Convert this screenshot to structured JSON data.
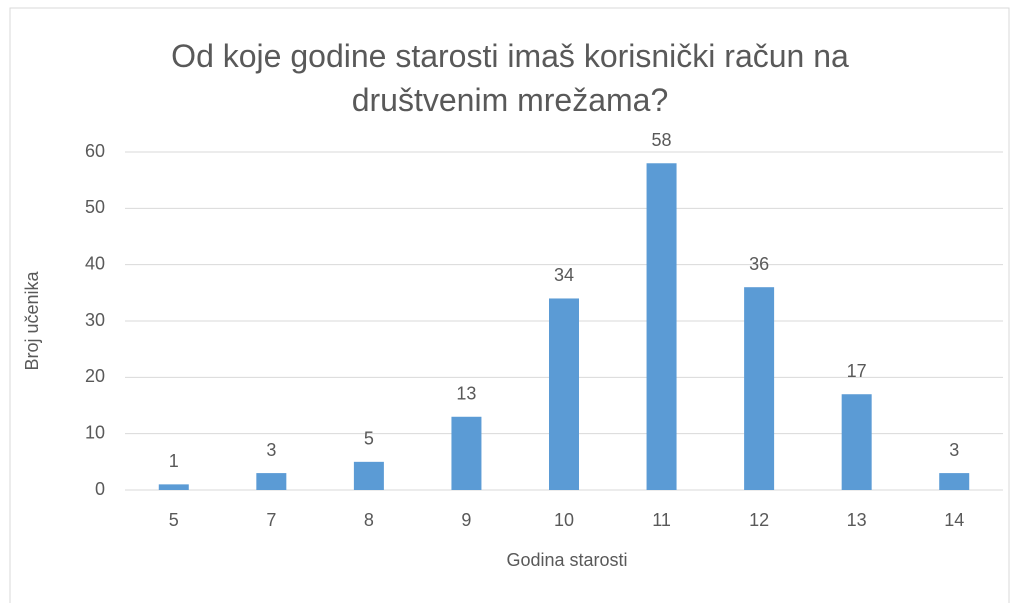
{
  "chart_data": {
    "type": "bar",
    "title": "Od koje godine starosti imaš korisnički račun na društvenim mrežama?",
    "x_label": "Godina starosti",
    "y_label": "Broj učenika",
    "categories": [
      "5",
      "7",
      "8",
      "9",
      "10",
      "11",
      "12",
      "13",
      "14"
    ],
    "values": [
      1,
      3,
      5,
      13,
      34,
      58,
      36,
      17,
      3
    ],
    "color": "#5b9bd5",
    "ylim": [
      0,
      60
    ],
    "yticks": [
      0,
      10,
      20,
      30,
      40,
      50,
      60
    ],
    "grid": true
  }
}
